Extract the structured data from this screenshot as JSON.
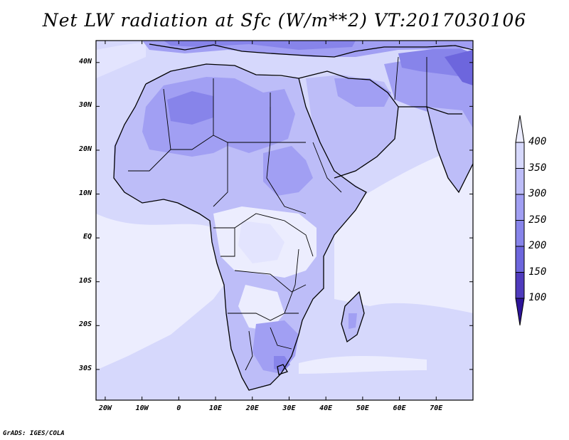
{
  "title": "Net LW radiation at Sfc (W/m**2) VT:2017030106",
  "credit": "GrADS: IGES/COLA",
  "map": {
    "lat_labels": [
      "40N",
      "30N",
      "20N",
      "10N",
      "EQ",
      "10S",
      "20S",
      "30S"
    ],
    "lat_values": [
      40,
      30,
      20,
      10,
      0,
      -10,
      -20,
      -30
    ],
    "lon_labels": [
      "20W",
      "10W",
      "0",
      "10E",
      "20E",
      "30E",
      "40E",
      "50E",
      "60E",
      "70E"
    ],
    "lon_values": [
      -20,
      -10,
      0,
      10,
      20,
      30,
      40,
      50,
      60,
      70
    ],
    "lon_range": [
      -22.5,
      80
    ],
    "lat_range": [
      -37,
      45
    ]
  },
  "colorbar": {
    "labels": [
      "400",
      "350",
      "300",
      "250",
      "200",
      "150",
      "100"
    ],
    "colors": [
      "#ecedfe",
      "#d6d8fc",
      "#bdbdf8",
      "#a19ff3",
      "#8784ea",
      "#6d66dd",
      "#4f3bbd",
      "#2d1499"
    ]
  }
}
